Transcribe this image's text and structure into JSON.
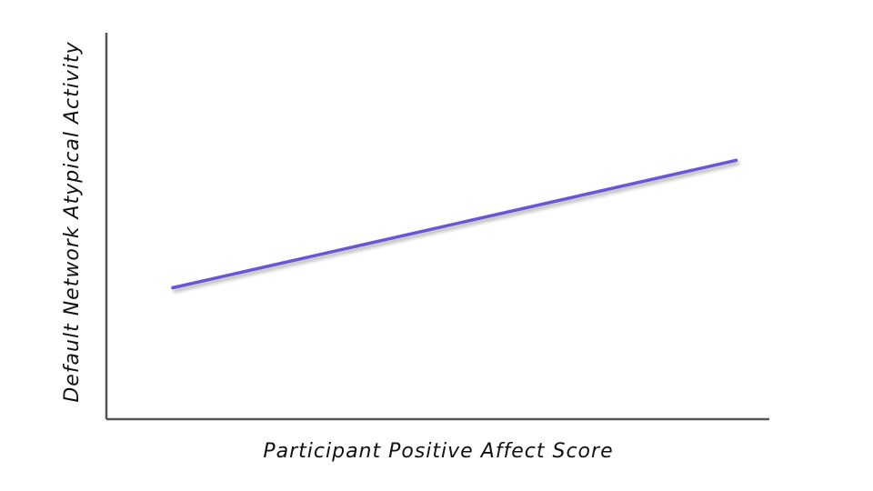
{
  "chart_data": {
    "type": "line",
    "title": "",
    "xlabel": "Participant Positive Affect Score",
    "ylabel": "Default Network Atypical Activity",
    "xlim": [
      0,
      100
    ],
    "ylim": [
      0,
      100
    ],
    "grid": false,
    "series": [
      {
        "color": "#6a55d6",
        "x": [
          10,
          95
        ],
        "y": [
          34,
          67
        ]
      }
    ]
  }
}
